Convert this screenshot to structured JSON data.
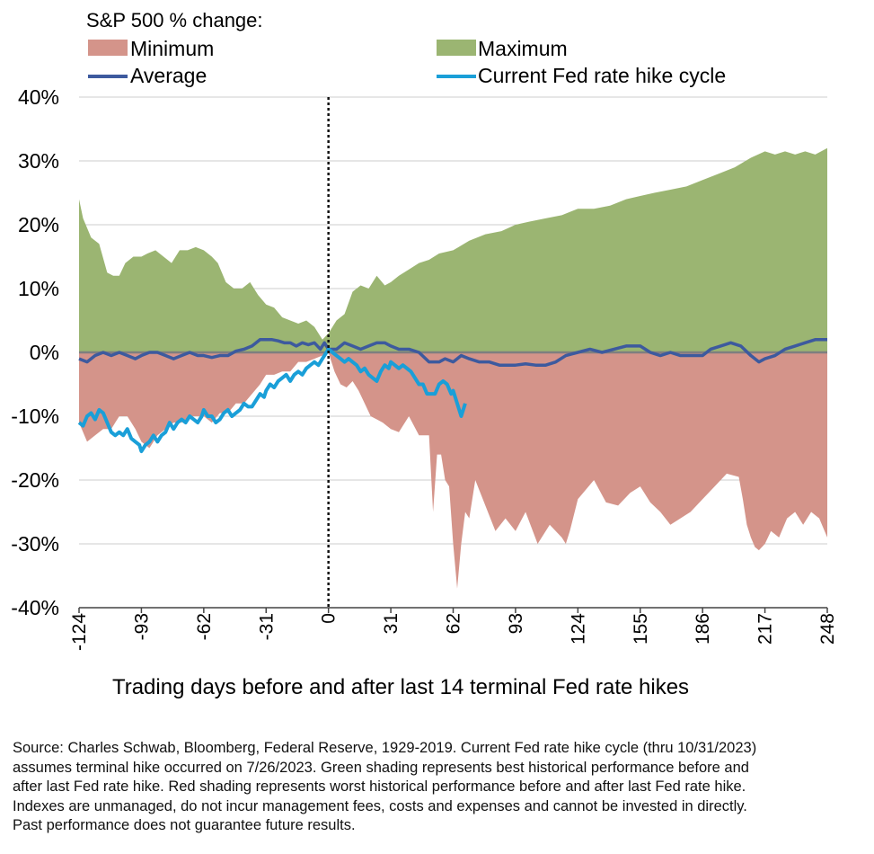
{
  "chart_data": {
    "type": "area",
    "legend_title": "S&P 500 % change:",
    "legend": {
      "minimum": "Minimum",
      "maximum": "Maximum",
      "average": "Average",
      "current": "Current Fed rate hike cycle"
    },
    "colors": {
      "minimum": "#d4948a",
      "maximum": "#9bb572",
      "average": "#3d5a9e",
      "current": "#1a9fd8",
      "zero_line": "#7f7f7f",
      "grid": "#cccccc"
    },
    "xlabel": "Trading days before and after last 14 terminal Fed rate hikes",
    "xlim": [
      -124,
      248
    ],
    "x_ticks": [
      -124,
      -93,
      -62,
      -31,
      0,
      31,
      62,
      93,
      124,
      155,
      186,
      217,
      248
    ],
    "x_tick_labels": [
      "-124",
      "-93",
      "-62",
      "-31",
      "0",
      "31",
      "62",
      "93",
      "124",
      "155",
      "186",
      "217",
      "248"
    ],
    "ylim": [
      -40,
      40
    ],
    "y_ticks": [
      40,
      30,
      20,
      10,
      0,
      -10,
      -20,
      -30,
      -40
    ],
    "y_tick_labels": [
      "40%",
      "30%",
      "20%",
      "10%",
      "0%",
      "-10%",
      "-20%",
      "-30%",
      "-40%"
    ],
    "vertical_marker_x": 0,
    "series": [
      {
        "name": "Maximum",
        "x": [
          -124,
          -122,
          -118,
          -114,
          -110,
          -107,
          -104,
          -101,
          -97,
          -93,
          -90,
          -86,
          -82,
          -78,
          -74,
          -70,
          -66,
          -62,
          -58,
          -55,
          -51,
          -47,
          -43,
          -39,
          -35,
          -31,
          -27,
          -23,
          -19,
          -15,
          -11,
          -7,
          -3,
          0,
          4,
          8,
          12,
          16,
          20,
          24,
          28,
          31,
          35,
          40,
          45,
          50,
          55,
          62,
          70,
          78,
          86,
          93,
          100,
          108,
          116,
          124,
          132,
          140,
          148,
          155,
          162,
          170,
          178,
          186,
          194,
          202,
          210,
          217,
          222,
          227,
          232,
          237,
          242,
          248
        ],
        "values": [
          24,
          21,
          18,
          17,
          12.5,
          12,
          12,
          14,
          15,
          15,
          15.5,
          16,
          15,
          14,
          16,
          16,
          16.5,
          16,
          15,
          14,
          11,
          10,
          10,
          11,
          9,
          7.5,
          7,
          5.5,
          5,
          4.5,
          5,
          4,
          2,
          3,
          5,
          6,
          9.5,
          10.5,
          10,
          12,
          10.5,
          11,
          12,
          13,
          14,
          14.5,
          15.5,
          16,
          17.5,
          18.5,
          19,
          20,
          20.5,
          21,
          21.5,
          22.5,
          22.5,
          23,
          24,
          24.5,
          25,
          25.5,
          26,
          27,
          28,
          29,
          30.5,
          31.5,
          31,
          31.5,
          31,
          31.5,
          31,
          32
        ]
      },
      {
        "name": "Minimum",
        "x": [
          -124,
          -120,
          -116,
          -112,
          -108,
          -104,
          -100,
          -96,
          -93,
          -89,
          -85,
          -81,
          -77,
          -73,
          -69,
          -65,
          -62,
          -58,
          -54,
          -50,
          -46,
          -42,
          -38,
          -34,
          -31,
          -27,
          -23,
          -19,
          -15,
          -11,
          -7,
          -3,
          0,
          3,
          6,
          9,
          12,
          15,
          18,
          21,
          24,
          27,
          31,
          35,
          40,
          45,
          50,
          52,
          54,
          56,
          58,
          60,
          62,
          64,
          66,
          68,
          70,
          73,
          78,
          83,
          88,
          93,
          98,
          104,
          110,
          116,
          118,
          120,
          124,
          128,
          132,
          138,
          144,
          150,
          155,
          160,
          165,
          170,
          175,
          180,
          186,
          192,
          198,
          204,
          206,
          208,
          210,
          212,
          214,
          217,
          220,
          224,
          228,
          232,
          236,
          240,
          244,
          248
        ],
        "values": [
          -11,
          -14,
          -13,
          -12,
          -12,
          -10,
          -10,
          -12,
          -14,
          -15,
          -13,
          -12,
          -11,
          -11,
          -10,
          -10,
          -10,
          -11,
          -9.5,
          -9.5,
          -8,
          -8,
          -6.5,
          -5,
          -3.5,
          -3.5,
          -3,
          -3,
          -1.5,
          -1.5,
          -1,
          -0.5,
          0,
          -3,
          -5,
          -5.5,
          -4.5,
          -6,
          -8,
          -10,
          -10.5,
          -11,
          -12,
          -12.5,
          -10,
          -13,
          -13,
          -25,
          -16,
          -16,
          -20,
          -21,
          -30,
          -37,
          -30,
          -25,
          -26,
          -20,
          -24,
          -28,
          -26,
          -28,
          -25,
          -30,
          -27,
          -29,
          -30,
          -28,
          -23,
          -21.5,
          -20,
          -23.5,
          -24,
          -22,
          -21,
          -23.5,
          -25,
          -27,
          -26,
          -25,
          -23,
          -21,
          -19,
          -19.5,
          -23,
          -27,
          -29,
          -30.5,
          -31,
          -30,
          -28,
          -29,
          -26,
          -25,
          -27,
          -25,
          -26,
          -29
        ]
      },
      {
        "name": "Average",
        "x": [
          -124,
          -120,
          -116,
          -112,
          -108,
          -104,
          -100,
          -96,
          -93,
          -89,
          -85,
          -81,
          -77,
          -73,
          -69,
          -65,
          -62,
          -58,
          -54,
          -50,
          -46,
          -42,
          -38,
          -34,
          -31,
          -28,
          -25,
          -22,
          -19,
          -16,
          -13,
          -10,
          -7,
          -4,
          -2,
          0,
          4,
          8,
          12,
          16,
          20,
          24,
          28,
          31,
          35,
          40,
          45,
          50,
          55,
          58,
          62,
          66,
          70,
          75,
          80,
          85,
          90,
          93,
          98,
          103,
          108,
          113,
          118,
          124,
          130,
          136,
          142,
          148,
          155,
          160,
          165,
          170,
          175,
          180,
          186,
          190,
          195,
          200,
          205,
          210,
          214,
          217,
          222,
          227,
          232,
          237,
          242,
          248
        ],
        "values": [
          -1,
          -1.5,
          -0.5,
          0,
          -0.5,
          0,
          -0.5,
          -1,
          -0.5,
          0,
          0,
          -0.5,
          -1,
          -0.5,
          0,
          -0.5,
          -0.5,
          -0.8,
          -0.5,
          -0.5,
          0.2,
          0.5,
          1,
          2,
          2,
          2,
          1.8,
          1.5,
          1.5,
          1,
          1.5,
          1.2,
          1.5,
          0.5,
          1.5,
          0.5,
          0.5,
          1.5,
          1,
          0.5,
          1,
          1.5,
          1.5,
          1,
          0.5,
          0.5,
          0,
          -1.5,
          -1.5,
          -1,
          -1.5,
          -0.5,
          -1,
          -1.5,
          -1.5,
          -2,
          -2,
          -2,
          -1.8,
          -2,
          -2,
          -1.5,
          -0.5,
          0,
          0.5,
          0,
          0.5,
          1,
          1,
          0,
          -0.5,
          0,
          -0.5,
          -0.5,
          -0.5,
          0.5,
          1,
          1.5,
          1,
          -0.5,
          -1.5,
          -1,
          -0.5,
          0.5,
          1,
          1.5,
          2,
          2
        ]
      },
      {
        "name": "Current Fed rate hike cycle",
        "x": [
          -124,
          -122,
          -120,
          -118,
          -116,
          -114,
          -112,
          -110,
          -108,
          -106,
          -104,
          -102,
          -100,
          -98,
          -96,
          -94,
          -93,
          -91,
          -89,
          -87,
          -85,
          -83,
          -81,
          -79,
          -77,
          -75,
          -73,
          -71,
          -69,
          -67,
          -65,
          -63,
          -62,
          -60,
          -58,
          -56,
          -54,
          -52,
          -50,
          -48,
          -46,
          -44,
          -42,
          -40,
          -38,
          -36,
          -34,
          -32,
          -31,
          -29,
          -27,
          -25,
          -23,
          -21,
          -19,
          -17,
          -15,
          -13,
          -11,
          -9,
          -7,
          -5,
          -3,
          -1,
          0,
          2,
          4,
          6,
          8,
          10,
          12,
          14,
          16,
          18,
          20,
          22,
          24,
          26,
          28,
          30,
          31,
          33,
          35,
          37,
          39,
          41,
          43,
          45,
          47,
          49,
          51,
          53,
          55,
          57,
          59,
          61,
          62,
          64,
          66,
          68
        ],
        "values": [
          -11,
          -11.5,
          -10,
          -9.5,
          -10.5,
          -9,
          -9.5,
          -11,
          -12.5,
          -13,
          -12.5,
          -13,
          -12,
          -13.5,
          -14,
          -14.5,
          -15.5,
          -14.5,
          -14,
          -13,
          -14,
          -13,
          -12.5,
          -11,
          -12,
          -11,
          -10.5,
          -11,
          -10,
          -10.5,
          -11,
          -10,
          -9,
          -10,
          -10,
          -11,
          -10.5,
          -9.5,
          -9,
          -10,
          -9.5,
          -9,
          -8,
          -8.5,
          -8.5,
          -7.5,
          -6.5,
          -7,
          -6,
          -5,
          -5.5,
          -4.5,
          -4,
          -3.5,
          -4.5,
          -3.5,
          -3,
          -3.5,
          -2.5,
          -2,
          -1.5,
          -2,
          -1,
          0,
          0.5,
          0,
          -0.5,
          -1,
          -1.5,
          -1,
          -1.5,
          -2,
          -3,
          -2.5,
          -3.5,
          -4,
          -4.5,
          -3,
          -2,
          -2.5,
          -1.5,
          -2,
          -2.5,
          -2,
          -2.5,
          -3,
          -4,
          -5,
          -5,
          -6.5,
          -6.5,
          -6.5,
          -5,
          -4.5,
          -5,
          -6.5,
          -6,
          -8,
          -10,
          -8
        ]
      }
    ]
  },
  "footnote": {
    "lines": [
      "Source: Charles Schwab, Bloomberg, Federal Reserve, 1929-2019.  Current Fed rate hike cycle (thru 10/31/2023)",
      "assumes terminal hike occurred on 7/26/2023.  Green shading represents best historical performance before and",
      "after last Fed rate hike. Red shading represents worst historical performance before and after last Fed rate hike.",
      "Indexes are unmanaged, do not incur management fees, costs and expenses and cannot be invested in directly.",
      "Past performance does not guarantee future results."
    ]
  }
}
